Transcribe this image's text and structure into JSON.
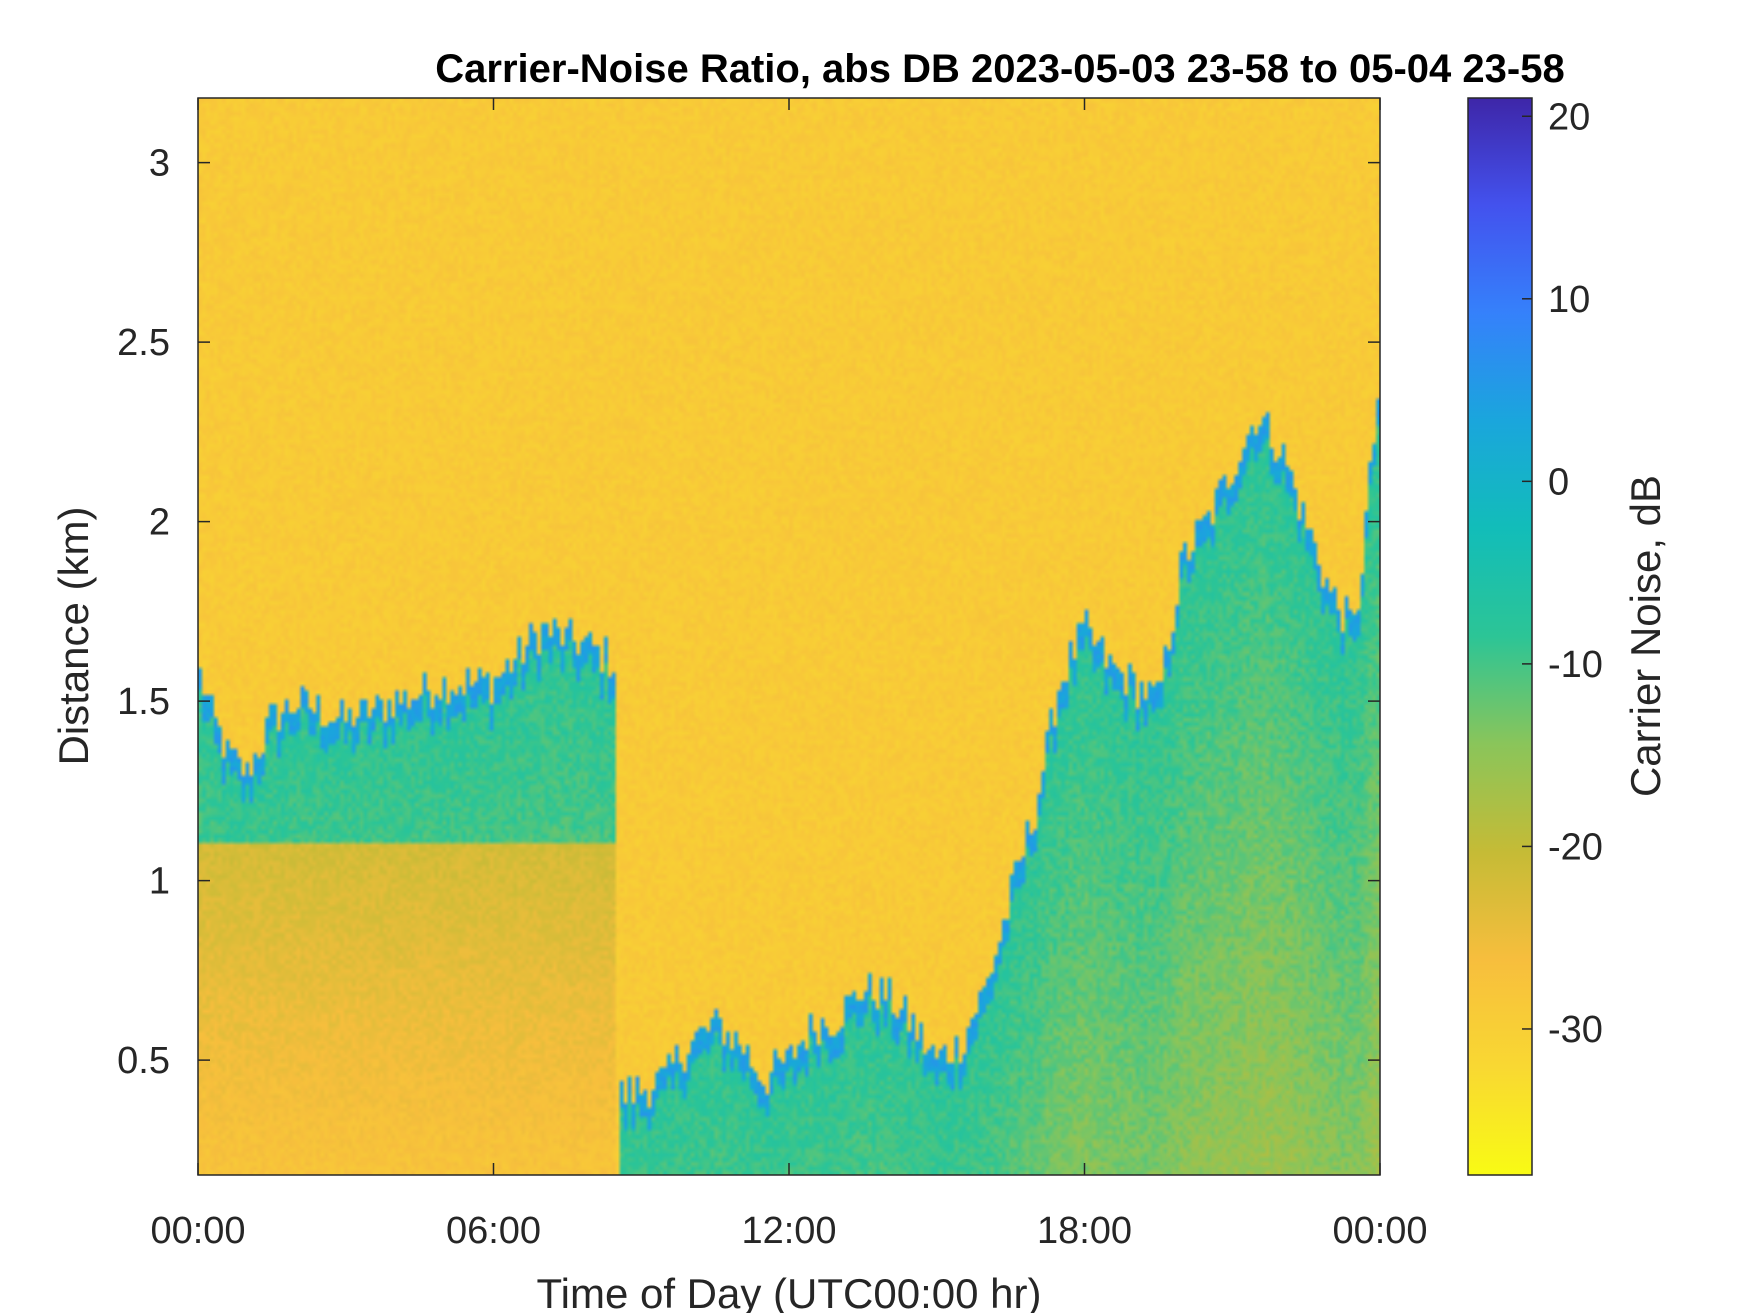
{
  "chart_data": {
    "type": "heatmap",
    "title": "Carrier-Noise Ratio, abs DB 2023-05-03 23-58 to 05-04 23-58",
    "xlabel": "Time of Day (UTC00:00 hr)",
    "ylabel": "Distance (km)",
    "x_ticks": [
      "00:00",
      "06:00",
      "12:00",
      "18:00",
      "00:00"
    ],
    "x_tick_hours": [
      0,
      6,
      12,
      18,
      24
    ],
    "xlim_hours": [
      0,
      24
    ],
    "y_ticks": [
      "0.5",
      "1",
      "1.5",
      "2",
      "2.5",
      "3"
    ],
    "y_tick_values": [
      0.5,
      1,
      1.5,
      2,
      2.5,
      3
    ],
    "ylim": [
      0.18,
      3.18
    ],
    "colorbar": {
      "label": "Carrier Noise, dB",
      "ticks": [
        "20",
        "10",
        "0",
        "-10",
        "-20",
        "-30"
      ],
      "tick_values": [
        20,
        10,
        0,
        -10,
        -20,
        -30
      ],
      "range": [
        -38,
        21
      ],
      "colormap": "parula",
      "colors_high_to_low": [
        "#3e26a8",
        "#4352ee",
        "#3581fb",
        "#1aa6dc",
        "#12bdb9",
        "#2cc596",
        "#8ac55a",
        "#c5bb36",
        "#f7be3d",
        "#f9d832",
        "#f9fb14"
      ]
    },
    "grid": false,
    "background_value_db": -29,
    "features": [
      {
        "kind": "boundary_layer",
        "t_hours": [
          0.0,
          0.3,
          0.6,
          1.0,
          1.5,
          2.0,
          3.0,
          4.0,
          5.0,
          6.0,
          7.0,
          8.0,
          8.5
        ],
        "top_km": [
          1.6,
          1.45,
          1.35,
          1.3,
          1.45,
          1.5,
          1.45,
          1.5,
          1.55,
          1.55,
          1.7,
          1.65,
          1.6
        ],
        "base_km": 1.1
      },
      {
        "kind": "plume_top",
        "t_hours": [
          8.6,
          9.0,
          9.5,
          10.0,
          10.5,
          11.0,
          11.5,
          12.0,
          12.5,
          13.0,
          13.5,
          14.0,
          14.5,
          15.0,
          15.5,
          16.0,
          16.5,
          17.0,
          17.5,
          18.0,
          18.5,
          19.0,
          19.5,
          20.0,
          20.5,
          21.0,
          21.5,
          22.0,
          22.5,
          23.0,
          23.5,
          24.0
        ],
        "top_km": [
          0.4,
          0.42,
          0.45,
          0.55,
          0.6,
          0.55,
          0.45,
          0.5,
          0.6,
          0.62,
          0.7,
          0.68,
          0.6,
          0.5,
          0.55,
          0.7,
          0.95,
          1.2,
          1.55,
          1.7,
          1.6,
          1.55,
          1.5,
          1.9,
          2.0,
          2.15,
          2.3,
          2.2,
          2.0,
          1.8,
          1.7,
          2.4
        ]
      }
    ]
  }
}
